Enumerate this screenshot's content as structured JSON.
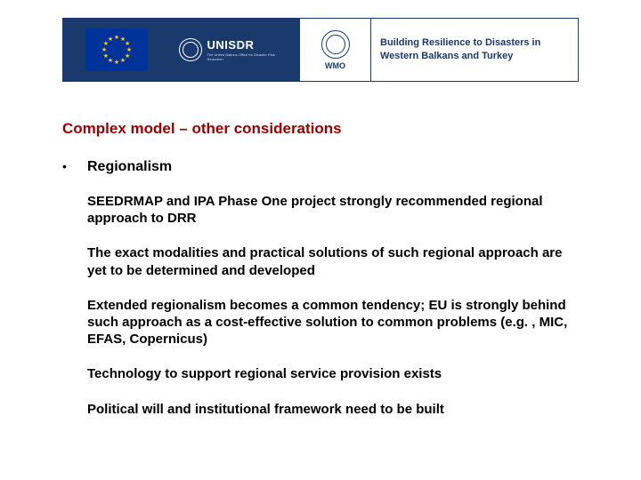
{
  "header": {
    "unisdr_label": "UNISDR",
    "unisdr_sub": "The United Nations Office for Disaster Risk Reduction",
    "wmo_label": "WMO",
    "resilience_line1": "Building Resilience to Disasters in",
    "resilience_line2": "Western Balkans and Turkey"
  },
  "colors": {
    "header_blue": "#1a3a6e",
    "title_red": "#9a0000",
    "body_text": "#000000",
    "eu_blue": "#003399",
    "eu_gold": "#ffcc00",
    "background": "#ffffff"
  },
  "typography": {
    "title_fontsize": 17,
    "body_fontsize": 15,
    "heading_fontsize": 16
  },
  "title": "Complex model – other considerations",
  "bullet_heading": "Regionalism",
  "paragraphs": [
    "SEEDRMAP and IPA Phase One project strongly recommended regional approach to DRR",
    "The exact modalities and practical solutions of such regional approach are yet to be determined and developed",
    "Extended regionalism becomes a common tendency; EU is strongly behind such approach as a cost-effective solution to common problems (e.g. , MIC, EFAS, Copernicus)",
    "Technology to support regional service provision exists",
    "Political will and institutional framework need to be built"
  ]
}
